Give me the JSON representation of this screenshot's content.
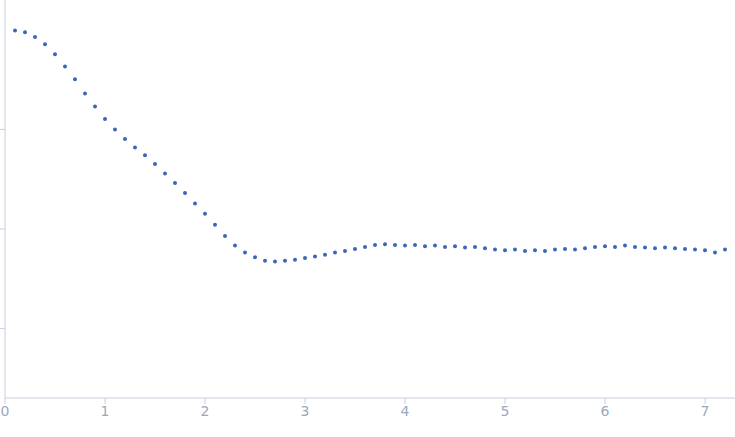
{
  "chart_data": {
    "type": "scatter",
    "log": "y",
    "color": "#3a66b8",
    "marker": "circle",
    "tick_labels": "x",
    "xlim": [
      0,
      7.3
    ],
    "xticks": [
      0,
      1,
      2,
      3,
      4,
      5,
      6,
      7
    ],
    "ylim": [
      0.0002,
      2
    ],
    "yticks": [
      0.001,
      0.01,
      0.1
    ],
    "x": [
      0.1,
      0.2,
      0.3,
      0.4,
      0.5,
      0.6,
      0.7,
      0.8,
      0.9,
      1.0,
      1.1,
      1.2,
      1.3,
      1.4,
      1.5,
      1.6,
      1.7,
      1.8,
      1.9,
      2.0,
      2.1,
      2.2,
      2.3,
      2.4,
      2.5,
      2.6,
      2.7,
      2.8,
      2.9,
      3.0,
      3.1,
      3.2,
      3.3,
      3.4,
      3.5,
      3.6,
      3.7,
      3.8,
      3.9,
      4.0,
      4.1,
      4.2,
      4.3,
      4.4,
      4.5,
      4.6,
      4.7,
      4.8,
      4.9,
      5.0,
      5.1,
      5.2,
      5.3,
      5.4,
      5.5,
      5.6,
      5.7,
      5.8,
      5.9,
      6.0,
      6.1,
      6.2,
      6.3,
      6.4,
      6.5,
      6.6,
      6.7,
      6.8,
      6.9,
      7.0,
      7.1,
      7.2
    ],
    "values": [
      0.99,
      0.95,
      0.85,
      0.72,
      0.57,
      0.43,
      0.32,
      0.23,
      0.17,
      0.127,
      0.1,
      0.08,
      0.066,
      0.055,
      0.045,
      0.036,
      0.029,
      0.023,
      0.018,
      0.0142,
      0.011,
      0.0085,
      0.0068,
      0.0058,
      0.0052,
      0.0048,
      0.0047,
      0.0048,
      0.0049,
      0.0051,
      0.0053,
      0.0055,
      0.0058,
      0.006,
      0.0063,
      0.0066,
      0.0069,
      0.007,
      0.0069,
      0.0068,
      0.0069,
      0.0067,
      0.0068,
      0.0066,
      0.0067,
      0.0065,
      0.0066,
      0.0064,
      0.0062,
      0.0061,
      0.0062,
      0.006,
      0.0061,
      0.006,
      0.0062,
      0.0063,
      0.0062,
      0.0064,
      0.0066,
      0.0067,
      0.0066,
      0.0068,
      0.0066,
      0.0065,
      0.0064,
      0.0065,
      0.0064,
      0.0063,
      0.0062,
      0.0061,
      0.0058,
      0.0062
    ]
  }
}
